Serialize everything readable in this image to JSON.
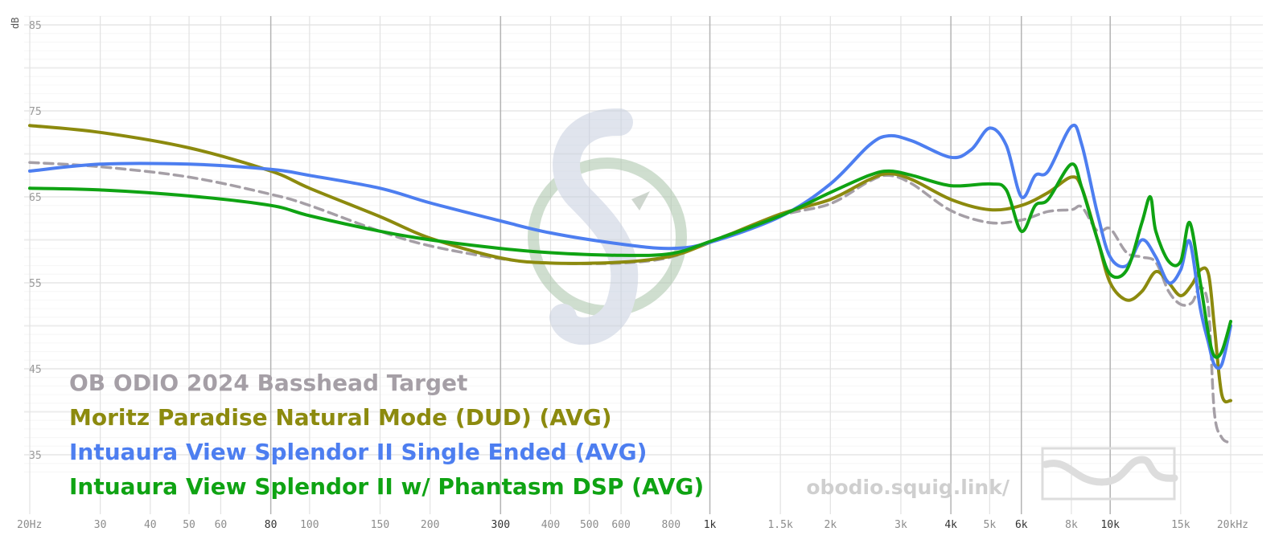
{
  "chart_data": {
    "type": "line",
    "y_unit_label": "dB",
    "x_scale": "log",
    "xlim": [
      20,
      20000
    ],
    "ylim": [
      30,
      86
    ],
    "grid": true,
    "legend_position": "bottom-left",
    "y_ticks": [
      {
        "value": 85,
        "label": "85"
      },
      {
        "value": 75,
        "label": "75"
      },
      {
        "value": 65,
        "label": "65"
      },
      {
        "value": 55,
        "label": "55"
      },
      {
        "value": 45,
        "label": "45"
      },
      {
        "value": 35,
        "label": "35"
      }
    ],
    "x_ticks": [
      {
        "value": 20,
        "label": "20Hz",
        "major": false
      },
      {
        "value": 30,
        "label": "30",
        "major": false
      },
      {
        "value": 40,
        "label": "40",
        "major": false
      },
      {
        "value": 50,
        "label": "50",
        "major": false
      },
      {
        "value": 60,
        "label": "60",
        "major": false
      },
      {
        "value": 80,
        "label": "80",
        "major": true
      },
      {
        "value": 100,
        "label": "100",
        "major": false
      },
      {
        "value": 150,
        "label": "150",
        "major": false
      },
      {
        "value": 200,
        "label": "200",
        "major": false
      },
      {
        "value": 300,
        "label": "300",
        "major": true
      },
      {
        "value": 400,
        "label": "400",
        "major": false
      },
      {
        "value": 500,
        "label": "500",
        "major": false
      },
      {
        "value": 600,
        "label": "600",
        "major": false
      },
      {
        "value": 800,
        "label": "800",
        "major": false
      },
      {
        "value": 1000,
        "label": "1k",
        "major": true
      },
      {
        "value": 1500,
        "label": "1.5k",
        "major": false
      },
      {
        "value": 2000,
        "label": "2k",
        "major": false
      },
      {
        "value": 3000,
        "label": "3k",
        "major": false
      },
      {
        "value": 4000,
        "label": "4k",
        "major": true
      },
      {
        "value": 5000,
        "label": "5k",
        "major": false
      },
      {
        "value": 6000,
        "label": "6k",
        "major": true
      },
      {
        "value": 8000,
        "label": "8k",
        "major": false
      },
      {
        "value": 10000,
        "label": "10k",
        "major": true
      },
      {
        "value": 15000,
        "label": "15k",
        "major": false
      },
      {
        "value": 20000,
        "label": "20kHz",
        "major": false
      }
    ],
    "series": [
      {
        "name": "OB ODIO 2024 Basshead Target",
        "color": "#a59fa6",
        "dashed": true,
        "points": [
          [
            20,
            69
          ],
          [
            30,
            68.5
          ],
          [
            50,
            67.3
          ],
          [
            80,
            65.3
          ],
          [
            100,
            64
          ],
          [
            150,
            61
          ],
          [
            200,
            59.3
          ],
          [
            300,
            57.8
          ],
          [
            400,
            57.3
          ],
          [
            600,
            57.3
          ],
          [
            800,
            58
          ],
          [
            1000,
            59.8
          ],
          [
            1500,
            62.8
          ],
          [
            2000,
            64.2
          ],
          [
            2500,
            66.8
          ],
          [
            2800,
            67.5
          ],
          [
            3200,
            66.5
          ],
          [
            4000,
            63.4
          ],
          [
            5000,
            62
          ],
          [
            6000,
            62.3
          ],
          [
            7000,
            63.3
          ],
          [
            8000,
            63.5
          ],
          [
            8500,
            63.8
          ],
          [
            9300,
            61
          ],
          [
            10000,
            61.3
          ],
          [
            11000,
            58.5
          ],
          [
            12000,
            58
          ],
          [
            13000,
            57.4
          ],
          [
            14000,
            54
          ],
          [
            15000,
            52.5
          ],
          [
            16000,
            52.7
          ],
          [
            16800,
            54.5
          ],
          [
            17600,
            52
          ],
          [
            18200,
            40
          ],
          [
            19000,
            37
          ],
          [
            20000,
            36.4
          ]
        ]
      },
      {
        "name": "Moritz Paradise Natural Mode (DUD) (AVG)",
        "color": "#8c8a0e",
        "dashed": false,
        "points": [
          [
            20,
            73.3
          ],
          [
            30,
            72.5
          ],
          [
            50,
            70.7
          ],
          [
            80,
            68
          ],
          [
            100,
            66
          ],
          [
            150,
            62.7
          ],
          [
            200,
            60.2
          ],
          [
            300,
            57.9
          ],
          [
            400,
            57.3
          ],
          [
            600,
            57.4
          ],
          [
            800,
            58.1
          ],
          [
            1000,
            59.7
          ],
          [
            1500,
            63
          ],
          [
            2000,
            64.7
          ],
          [
            2500,
            67
          ],
          [
            2800,
            67.7
          ],
          [
            3200,
            67
          ],
          [
            4000,
            64.7
          ],
          [
            5000,
            63.5
          ],
          [
            6000,
            64
          ],
          [
            7000,
            65.5
          ],
          [
            8000,
            67.3
          ],
          [
            8500,
            66
          ],
          [
            9300,
            60
          ],
          [
            10000,
            55
          ],
          [
            11000,
            53
          ],
          [
            12000,
            54
          ],
          [
            13000,
            56.3
          ],
          [
            14000,
            55
          ],
          [
            15000,
            53.5
          ],
          [
            16000,
            54.8
          ],
          [
            16800,
            56.5
          ],
          [
            17600,
            56
          ],
          [
            18200,
            50
          ],
          [
            19000,
            42
          ],
          [
            20000,
            41.3
          ]
        ]
      },
      {
        "name": "Intuaura View Splendor II Single Ended (AVG)",
        "color": "#4d7ef0",
        "dashed": false,
        "points": [
          [
            20,
            68
          ],
          [
            30,
            68.8
          ],
          [
            50,
            68.8
          ],
          [
            80,
            68.2
          ],
          [
            100,
            67.5
          ],
          [
            150,
            66
          ],
          [
            200,
            64.3
          ],
          [
            300,
            62.2
          ],
          [
            400,
            60.8
          ],
          [
            600,
            59.5
          ],
          [
            800,
            59
          ],
          [
            1000,
            59.7
          ],
          [
            1500,
            62.7
          ],
          [
            2000,
            66.5
          ],
          [
            2500,
            71
          ],
          [
            2800,
            72.1
          ],
          [
            3200,
            71.5
          ],
          [
            4000,
            69.6
          ],
          [
            4500,
            70.5
          ],
          [
            5000,
            73
          ],
          [
            5500,
            71
          ],
          [
            6000,
            65
          ],
          [
            6500,
            67.5
          ],
          [
            7000,
            68
          ],
          [
            8000,
            73.2
          ],
          [
            8500,
            71
          ],
          [
            9300,
            63
          ],
          [
            10000,
            58
          ],
          [
            11000,
            57
          ],
          [
            12000,
            60
          ],
          [
            13000,
            58
          ],
          [
            14000,
            55
          ],
          [
            15000,
            56.5
          ],
          [
            15800,
            59.8
          ],
          [
            16800,
            52
          ],
          [
            17600,
            48
          ],
          [
            18200,
            45.5
          ],
          [
            19000,
            45.5
          ],
          [
            20000,
            50
          ]
        ]
      },
      {
        "name": "Intuaura View Splendor II w/ Phantasm DSP (AVG)",
        "color": "#0fa313",
        "dashed": false,
        "points": [
          [
            20,
            66
          ],
          [
            30,
            65.8
          ],
          [
            50,
            65.1
          ],
          [
            80,
            64
          ],
          [
            100,
            62.8
          ],
          [
            150,
            61
          ],
          [
            200,
            60
          ],
          [
            300,
            59
          ],
          [
            400,
            58.5
          ],
          [
            600,
            58.2
          ],
          [
            800,
            58.4
          ],
          [
            1000,
            59.8
          ],
          [
            1500,
            62.8
          ],
          [
            2000,
            65.5
          ],
          [
            2500,
            67.5
          ],
          [
            2800,
            68
          ],
          [
            3200,
            67.5
          ],
          [
            4000,
            66.3
          ],
          [
            5000,
            66.5
          ],
          [
            5500,
            65.8
          ],
          [
            6000,
            61
          ],
          [
            6500,
            64
          ],
          [
            7000,
            64.7
          ],
          [
            8000,
            68.8
          ],
          [
            8500,
            66
          ],
          [
            9300,
            60
          ],
          [
            10000,
            56
          ],
          [
            11000,
            56.5
          ],
          [
            12000,
            62
          ],
          [
            12600,
            65
          ],
          [
            13000,
            61
          ],
          [
            14000,
            57.5
          ],
          [
            15000,
            57.5
          ],
          [
            15800,
            62
          ],
          [
            16800,
            55
          ],
          [
            17600,
            49
          ],
          [
            18200,
            46.5
          ],
          [
            19000,
            47
          ],
          [
            20000,
            50.5
          ]
        ]
      }
    ],
    "watermark_text": "obodio.squig.link/"
  }
}
